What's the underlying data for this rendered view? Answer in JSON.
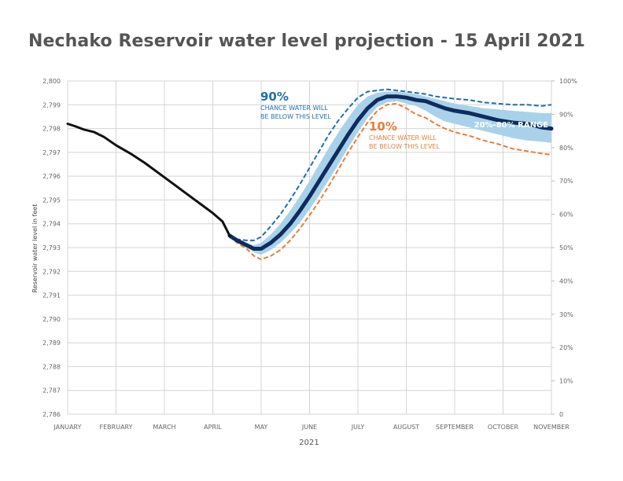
{
  "chart_data": {
    "type": "line",
    "title": "Nechako Reservoir water level projection - 15 April 2021",
    "xlabel": "2021",
    "ylabel": "Reservoir water level in feet",
    "ylim": [
      2786,
      2800
    ],
    "y2lim": [
      0,
      100
    ],
    "xlim": [
      0,
      10
    ],
    "x_ticks": [
      "JANUARY",
      "FEBRUARY",
      "MARCH",
      "APRIL",
      "MAY",
      "JUNE",
      "JULY",
      "AUGUST",
      "SEPTEMBER",
      "OCTOBER",
      "NOVEMBER"
    ],
    "y_ticks": [
      "2,786",
      "2,787",
      "2,788",
      "2,789",
      "2,790",
      "2,791",
      "2,792",
      "2,793",
      "2,794",
      "2,795",
      "2,796",
      "2,797",
      "2,798",
      "2,799",
      "2,800"
    ],
    "y2_ticks": [
      "0",
      "10%",
      "20%",
      "30%",
      "40%",
      "50%",
      "60%",
      "70%",
      "80%",
      "90%",
      "100%"
    ],
    "grid": true,
    "colors": {
      "observed": "#111111",
      "median": "#0d2d5e",
      "band": "#a9d2ea",
      "p90": "#1f70a8",
      "p10": "#e97e37"
    },
    "annotations": {
      "p90_big": "90%",
      "p90_line1": "CHANCE WATER WILL",
      "p90_line2": "BE BELOW THIS LEVEL",
      "p10_big": "10%",
      "p10_line1": "CHANCE WATER WILL",
      "p10_line2": "BE BELOW THIS LEVEL",
      "range": "20%-80% RANGE"
    },
    "series": {
      "observed": {
        "x": [
          0,
          0.15,
          0.35,
          0.55,
          0.75,
          1.0,
          1.3,
          1.6,
          1.9,
          2.2,
          2.5,
          2.8,
          3.0,
          3.2,
          3.35
        ],
        "y": [
          2798.2,
          2798.1,
          2797.95,
          2797.85,
          2797.65,
          2797.3,
          2796.95,
          2796.55,
          2796.1,
          2795.65,
          2795.2,
          2794.75,
          2794.45,
          2794.1,
          2793.5
        ]
      },
      "median": {
        "x": [
          3.35,
          3.5,
          3.7,
          3.85,
          4.0,
          4.2,
          4.4,
          4.6,
          4.8,
          5.0,
          5.2,
          5.4,
          5.6,
          5.8,
          6.0,
          6.2,
          6.4,
          6.6,
          6.8,
          7.0,
          7.2,
          7.4,
          7.6,
          7.8,
          8.0,
          8.3,
          8.6,
          8.9,
          9.2,
          9.5,
          9.8,
          10.0
        ],
        "y": [
          2793.5,
          2793.3,
          2793.1,
          2792.95,
          2792.95,
          2793.2,
          2793.55,
          2794.0,
          2794.55,
          2795.15,
          2795.8,
          2796.45,
          2797.1,
          2797.75,
          2798.35,
          2798.85,
          2799.2,
          2799.35,
          2799.35,
          2799.3,
          2799.2,
          2799.15,
          2799.0,
          2798.85,
          2798.75,
          2798.65,
          2798.5,
          2798.35,
          2798.25,
          2798.2,
          2798.05,
          2798.0
        ]
      },
      "band_upper": {
        "x": [
          3.35,
          3.5,
          3.7,
          3.85,
          4.0,
          4.2,
          4.4,
          4.6,
          4.8,
          5.0,
          5.2,
          5.4,
          5.6,
          5.8,
          6.0,
          6.2,
          6.4,
          6.6,
          6.8,
          7.0,
          7.2,
          7.4,
          7.6,
          7.8,
          8.0,
          8.3,
          8.6,
          8.9,
          9.2,
          9.5,
          9.8,
          10.0
        ],
        "y": [
          2793.5,
          2793.4,
          2793.2,
          2793.1,
          2793.2,
          2793.55,
          2794.0,
          2794.55,
          2795.15,
          2795.8,
          2796.5,
          2797.2,
          2797.85,
          2798.45,
          2799.0,
          2799.35,
          2799.5,
          2799.55,
          2799.55,
          2799.5,
          2799.45,
          2799.35,
          2799.25,
          2799.15,
          2799.05,
          2798.95,
          2798.85,
          2798.8,
          2798.75,
          2798.7,
          2798.65,
          2798.65
        ]
      },
      "band_lower": {
        "x": [
          3.35,
          3.5,
          3.7,
          3.85,
          4.0,
          4.2,
          4.4,
          4.6,
          4.8,
          5.0,
          5.2,
          5.4,
          5.6,
          5.8,
          6.0,
          6.2,
          6.4,
          6.6,
          6.8,
          7.0,
          7.2,
          7.4,
          7.6,
          7.8,
          8.0,
          8.3,
          8.6,
          8.9,
          9.2,
          9.5,
          9.8,
          10.0
        ],
        "y": [
          2793.5,
          2793.25,
          2793.0,
          2792.8,
          2792.7,
          2792.9,
          2793.2,
          2793.6,
          2794.05,
          2794.6,
          2795.2,
          2795.85,
          2796.5,
          2797.2,
          2797.85,
          2798.45,
          2798.9,
          2799.1,
          2799.15,
          2799.05,
          2798.95,
          2798.75,
          2798.5,
          2798.3,
          2798.2,
          2798.05,
          2797.9,
          2797.75,
          2797.6,
          2797.5,
          2797.45,
          2797.4
        ]
      },
      "p90": {
        "x": [
          3.35,
          3.5,
          3.7,
          3.85,
          4.0,
          4.2,
          4.4,
          4.6,
          4.8,
          5.0,
          5.2,
          5.4,
          5.6,
          5.8,
          6.0,
          6.2,
          6.4,
          6.6,
          6.8,
          7.0,
          7.2,
          7.4,
          7.6,
          7.8,
          8.0,
          8.3,
          8.6,
          8.9,
          9.2,
          9.5,
          9.8,
          10.0
        ],
        "y": [
          2793.5,
          2793.35,
          2793.3,
          2793.3,
          2793.45,
          2793.9,
          2794.4,
          2795.0,
          2795.65,
          2796.35,
          2797.05,
          2797.75,
          2798.35,
          2798.85,
          2799.3,
          2799.55,
          2799.6,
          2799.65,
          2799.6,
          2799.55,
          2799.5,
          2799.45,
          2799.35,
          2799.3,
          2799.25,
          2799.2,
          2799.1,
          2799.05,
          2799.0,
          2799.0,
          2798.95,
          2799.0
        ]
      },
      "p10": {
        "x": [
          3.35,
          3.5,
          3.7,
          3.85,
          4.0,
          4.2,
          4.4,
          4.6,
          4.8,
          5.0,
          5.2,
          5.4,
          5.6,
          5.8,
          6.0,
          6.2,
          6.4,
          6.6,
          6.8,
          7.0,
          7.2,
          7.4,
          7.6,
          7.8,
          8.0,
          8.3,
          8.6,
          8.9,
          9.2,
          9.5,
          9.8,
          10.0
        ],
        "y": [
          2793.5,
          2793.2,
          2792.95,
          2792.65,
          2792.5,
          2792.65,
          2792.9,
          2793.3,
          2793.8,
          2794.35,
          2794.95,
          2795.6,
          2796.3,
          2797.0,
          2797.65,
          2798.25,
          2798.75,
          2799.0,
          2799.05,
          2798.85,
          2798.6,
          2798.45,
          2798.2,
          2798.0,
          2797.85,
          2797.7,
          2797.5,
          2797.35,
          2797.15,
          2797.05,
          2796.95,
          2796.9
        ]
      }
    }
  }
}
